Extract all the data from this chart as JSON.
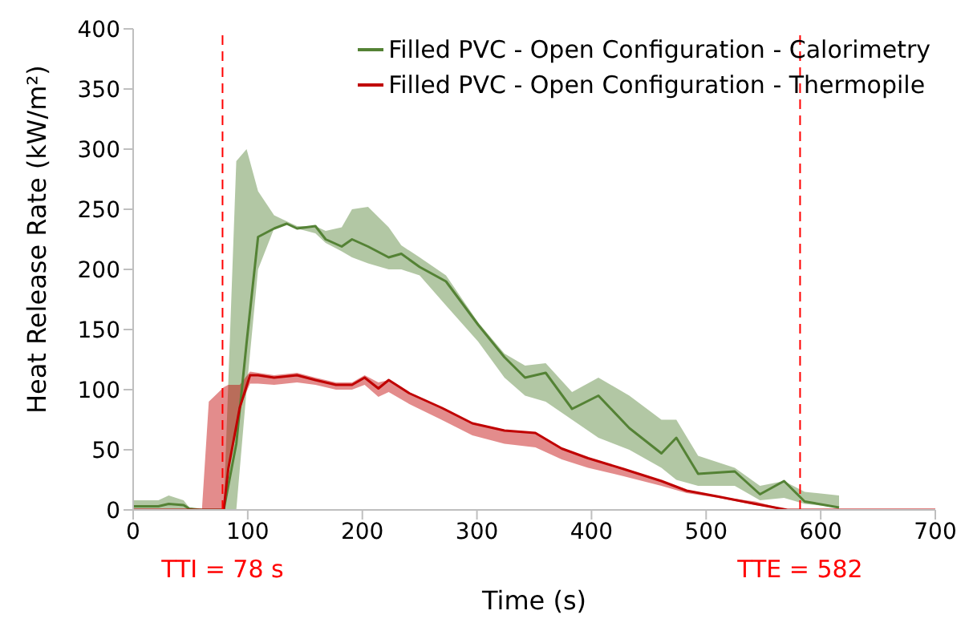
{
  "chart_data": {
    "type": "line",
    "xlabel": "Time (s)",
    "ylabel": "Heat Release Rate (kW/m²)",
    "xlim": [
      0,
      700
    ],
    "xticks": [
      0,
      100,
      200,
      300,
      400,
      500,
      600,
      700
    ],
    "ylim": [
      0,
      400
    ],
    "yticks": [
      0,
      50,
      100,
      150,
      200,
      250,
      300,
      350,
      400
    ],
    "grid": false,
    "legend": "top right",
    "marker": "none",
    "line_style": "solid",
    "ref_lines": [
      {
        "axis": "x",
        "value": 78,
        "label": "TTI = 78 s",
        "color": "#ff0000",
        "line_style": "dashed"
      },
      {
        "axis": "x",
        "value": 582,
        "label": "TTE = 582",
        "color": "#ff0000",
        "line_style": "dashed"
      }
    ],
    "series": [
      {
        "name": "Filled PVC - Open Configuration - Calorimetry",
        "color": "#548235",
        "x": [
          0,
          22,
          31,
          44,
          49,
          60,
          79,
          90,
          99,
          109,
          123,
          134,
          143,
          159,
          168,
          182,
          191,
          205,
          223,
          234,
          250,
          273,
          301,
          324,
          342,
          360,
          383,
          406,
          433,
          461,
          474,
          493,
          525,
          547,
          568,
          586,
          616
        ],
        "values": [
          3,
          3,
          5,
          4,
          1,
          0,
          0,
          55,
          139,
          227,
          234,
          238,
          234,
          236,
          225,
          219,
          225,
          219,
          210,
          213,
          202,
          190,
          154,
          127,
          110,
          114,
          84,
          95,
          68,
          47,
          60,
          30,
          32,
          13,
          24,
          7,
          2
        ],
        "lower": [
          0,
          0,
          0,
          0,
          0,
          0,
          0,
          0,
          100,
          200,
          234,
          238,
          234,
          230,
          222,
          215,
          210,
          205,
          200,
          200,
          195,
          170,
          140,
          110,
          95,
          90,
          75,
          60,
          50,
          35,
          25,
          20,
          20,
          8,
          10,
          5,
          2
        ],
        "upper": [
          8,
          8,
          12,
          8,
          2,
          0,
          0,
          290,
          300,
          265,
          245,
          240,
          236,
          236,
          232,
          235,
          250,
          252,
          235,
          220,
          210,
          195,
          156,
          130,
          120,
          122,
          98,
          110,
          95,
          75,
          75,
          45,
          35,
          20,
          24,
          15,
          12
        ]
      },
      {
        "name": "Filled PVC - Open Configuration - Thermopile",
        "color": "#c00000",
        "x": [
          0,
          60,
          66,
          79,
          83,
          93,
          102,
          109,
          123,
          143,
          159,
          177,
          191,
          202,
          214,
          223,
          241,
          269,
          296,
          324,
          351,
          374,
          397,
          428,
          461,
          483,
          511,
          543,
          571,
          700
        ],
        "values": [
          0,
          0,
          0,
          0,
          34,
          85,
          112,
          112,
          110,
          112,
          108,
          104,
          104,
          110,
          101,
          108,
          97,
          85,
          72,
          66,
          64,
          51,
          43,
          34,
          24,
          16,
          11,
          5,
          0,
          0
        ],
        "lower": [
          0,
          0,
          0,
          0,
          34,
          85,
          105,
          105,
          104,
          106,
          104,
          100,
          100,
          104,
          94,
          98,
          88,
          75,
          62,
          55,
          52,
          42,
          35,
          28,
          20,
          14,
          10,
          4,
          0,
          0
        ],
        "upper": [
          0,
          0,
          90,
          102,
          104,
          104,
          115,
          114,
          112,
          114,
          110,
          106,
          106,
          112,
          106,
          108,
          97,
          85,
          72,
          66,
          64,
          51,
          43,
          34,
          24,
          16,
          11,
          7,
          0,
          0
        ]
      }
    ]
  }
}
